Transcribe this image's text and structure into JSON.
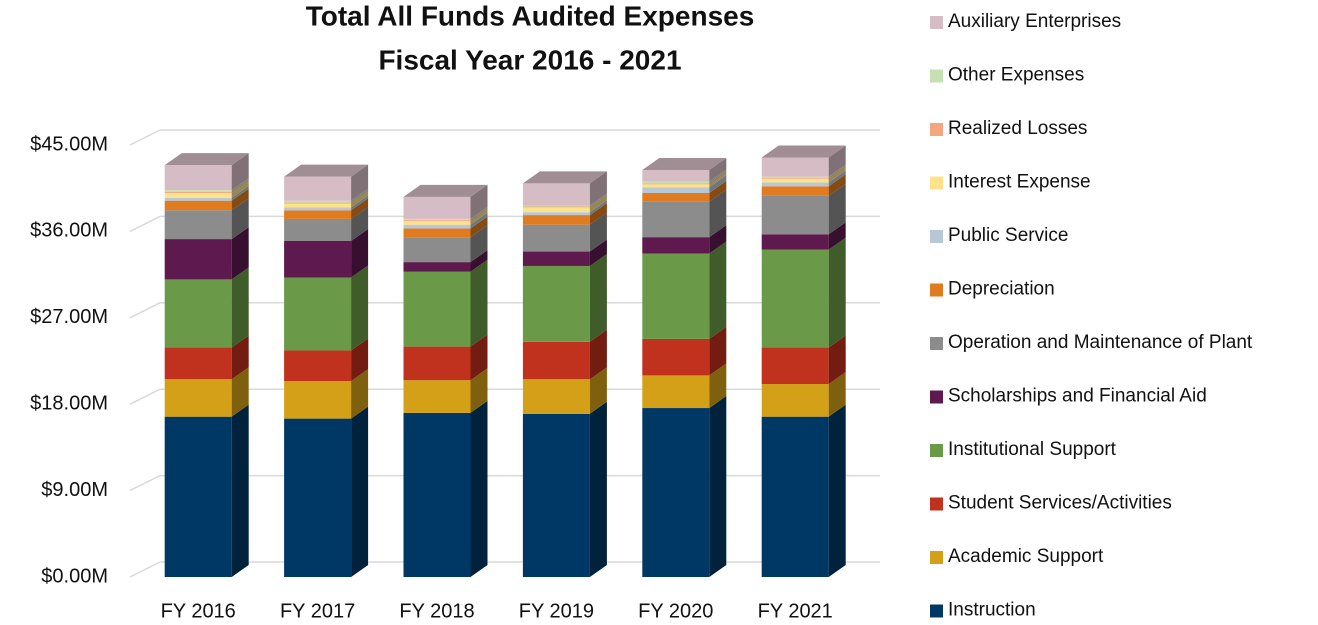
{
  "chart_data": {
    "type": "bar3d_stacked",
    "title": "Total All Funds Audited Expenses",
    "subtitle": "Fiscal Year 2016 - 2021",
    "categories": [
      "FY 2016",
      "FY 2017",
      "FY 2018",
      "FY 2019",
      "FY 2020",
      "FY 2021"
    ],
    "series": [
      {
        "name": "Instruction",
        "color": "#003865",
        "values": [
          16.7,
          16.5,
          17.1,
          17.0,
          17.6,
          16.7
        ]
      },
      {
        "name": "Academic Support",
        "color": "#d4a017",
        "values": [
          3.9,
          3.9,
          3.4,
          3.6,
          3.4,
          3.4
        ]
      },
      {
        "name": "Student Services/Activities",
        "color": "#c0311e",
        "values": [
          3.3,
          3.2,
          3.5,
          3.9,
          3.8,
          3.8
        ]
      },
      {
        "name": "Institutional Support",
        "color": "#6a9a48",
        "values": [
          7.1,
          7.6,
          7.8,
          7.9,
          8.9,
          10.2
        ]
      },
      {
        "name": "Scholarships and Financial Aid",
        "color": "#5e1a4e",
        "values": [
          4.2,
          3.8,
          1.0,
          1.5,
          1.7,
          1.6
        ]
      },
      {
        "name": "Operation and Maintenance of Plant",
        "color": "#8c8c8c",
        "values": [
          3.0,
          2.3,
          2.6,
          2.8,
          3.7,
          4.0
        ]
      },
      {
        "name": "Depreciation",
        "color": "#e07b1f",
        "values": [
          1.0,
          0.9,
          0.9,
          1.0,
          0.9,
          1.0
        ]
      },
      {
        "name": "Public Service",
        "color": "#b8c7d6",
        "values": [
          0.3,
          0.3,
          0.4,
          0.3,
          0.6,
          0.4
        ]
      },
      {
        "name": "Interest Expense",
        "color": "#fce38a",
        "values": [
          0.5,
          0.4,
          0.4,
          0.5,
          0.3,
          0.4
        ]
      },
      {
        "name": "Realized Losses",
        "color": "#f4a582",
        "values": [
          0.1,
          0.1,
          0.1,
          0.1,
          0.1,
          0.1
        ]
      },
      {
        "name": "Other Expenses",
        "color": "#c7e0b3",
        "values": [
          0.2,
          0.2,
          0.1,
          0.1,
          0.2,
          0.1
        ]
      },
      {
        "name": "Auxiliary Enterprises",
        "color": "#d6bcc5",
        "values": [
          2.6,
          2.5,
          2.3,
          2.3,
          1.2,
          2.0
        ]
      }
    ],
    "ylim": [
      0,
      45
    ],
    "yticks": [
      {
        "value": 0,
        "label": "$0.00M"
      },
      {
        "value": 9,
        "label": "$9.00M"
      },
      {
        "value": 18,
        "label": "$18.00M"
      },
      {
        "value": 27,
        "label": "$27.00M"
      },
      {
        "value": 36,
        "label": "$36.00M"
      },
      {
        "value": 45,
        "label": "$45.00M"
      }
    ],
    "grid": true,
    "legend": "right"
  }
}
